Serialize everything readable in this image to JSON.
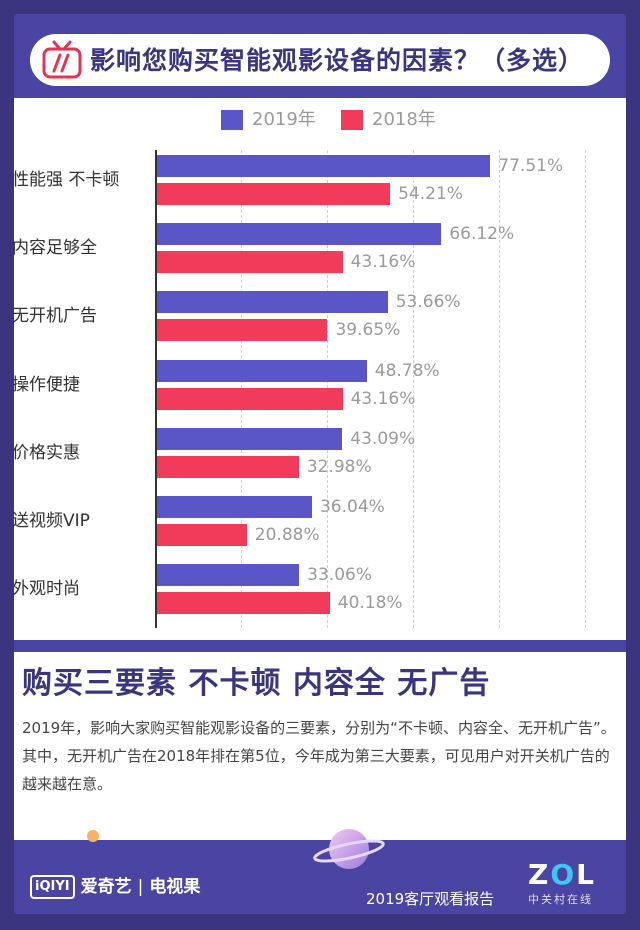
{
  "title": "影响您购买智能观影设备的因素？（多选）",
  "chart_data": {
    "type": "bar",
    "orientation": "horizontal",
    "title": "影响您购买智能观影设备的因素？（多选）",
    "categories": [
      "性能强 不卡顿",
      "内容足够全",
      "无开机广告",
      "操作便捷",
      "价格实惠",
      "送视频VIP",
      "外观时尚"
    ],
    "series": [
      {
        "name": "2019年",
        "color": "#5a56c7",
        "values": [
          77.51,
          66.12,
          53.66,
          48.78,
          43.09,
          36.04,
          33.06
        ],
        "labels": [
          "77.51%",
          "66.12%",
          "53.66%",
          "48.78%",
          "43.09%",
          "36.04%",
          "33.06%"
        ]
      },
      {
        "name": "2018年",
        "color": "#f23a5b",
        "values": [
          54.21,
          43.16,
          39.65,
          43.16,
          32.98,
          20.88,
          40.18
        ],
        "labels": [
          "54.21%",
          "43.16%",
          "39.65%",
          "43.16%",
          "32.98%",
          "20.88%",
          "40.18%"
        ]
      }
    ],
    "xlim": [
      0,
      100
    ],
    "grid": true,
    "legend": "top-center"
  },
  "summary": {
    "headline": "购买三要素 不卡顿 内容全 无广告",
    "body": "2019年，影响大家购买智能观影设备的三要素，分别为“不卡顿、内容全、无开机广告”。其中，无开机广告在2018年排在第5位，今年成为第三大要素，可见用户对开关机广告的越来越在意。"
  },
  "footer": {
    "logo_text": "iQIYI",
    "brand": "爱奇艺",
    "brand_sub": "电视果",
    "report": "2019客厅观看报告",
    "zol_main": "Z",
    "zol_o": "O",
    "zol_end": "L",
    "zol_sub": "中关村在线"
  },
  "colors": {
    "background": "#3b3580",
    "accent_2019": "#5a56c7",
    "accent_2018": "#f23a5b"
  }
}
